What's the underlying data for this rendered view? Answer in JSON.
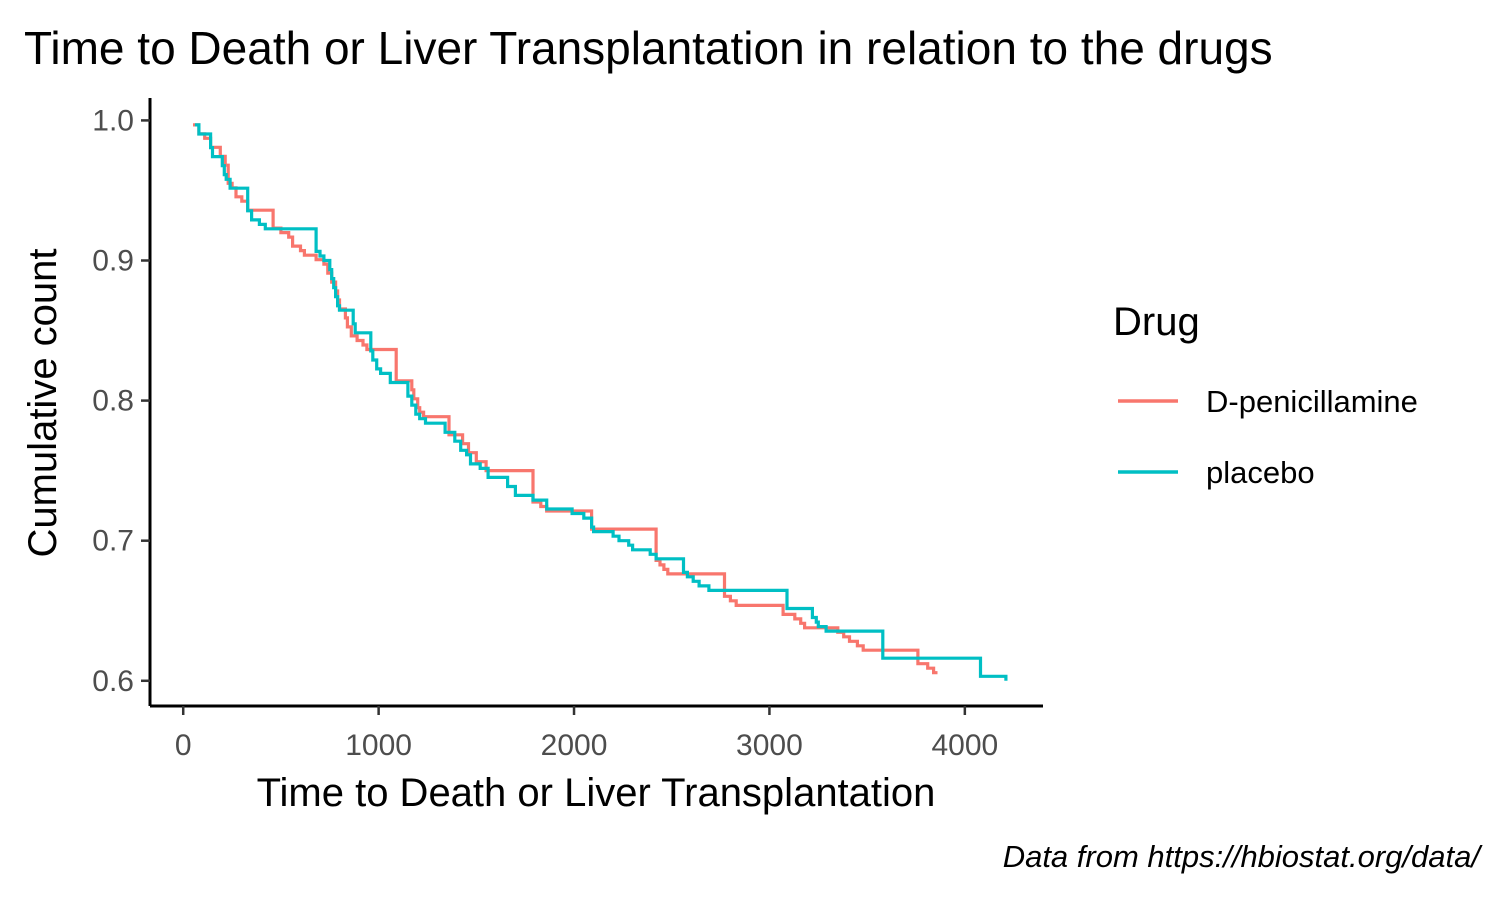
{
  "chart_data": {
    "type": "line",
    "step": true,
    "title": "Time to Death or Liver Transplantation in relation to the drugs",
    "xlabel": "Time to Death or Liver Transplantation",
    "ylabel": "Cumulative count",
    "caption": "Data from https://hbiostat.org/data/",
    "xlim": [
      -170,
      4400
    ],
    "ylim": [
      0.582,
      1.016
    ],
    "xticks": [
      0,
      1000,
      2000,
      3000,
      4000
    ],
    "xtick_labels": [
      "0",
      "1000",
      "2000",
      "3000",
      "4000"
    ],
    "yticks": [
      0.6,
      0.7,
      0.8,
      0.9,
      1.0
    ],
    "ytick_labels": [
      "0.6",
      "0.7",
      "0.8",
      "0.9",
      "1.0"
    ],
    "grid": false,
    "legend": {
      "title": "Drug",
      "position": "right"
    },
    "series": [
      {
        "name": "D-penicillamine",
        "color": "#F8766D",
        "points": [
          [
            50,
            0.9968
          ],
          [
            80,
            0.9904
          ],
          [
            110,
            0.9872
          ],
          [
            140,
            0.9808
          ],
          [
            190,
            0.9744
          ],
          [
            215,
            0.968
          ],
          [
            230,
            0.9551
          ],
          [
            250,
            0.9519
          ],
          [
            270,
            0.9455
          ],
          [
            300,
            0.9423
          ],
          [
            330,
            0.9359
          ],
          [
            460,
            0.9231
          ],
          [
            500,
            0.9199
          ],
          [
            540,
            0.9167
          ],
          [
            560,
            0.9103
          ],
          [
            600,
            0.9071
          ],
          [
            620,
            0.9038
          ],
          [
            680,
            0.9006
          ],
          [
            720,
            0.8974
          ],
          [
            740,
            0.891
          ],
          [
            760,
            0.8846
          ],
          [
            780,
            0.8782
          ],
          [
            790,
            0.8718
          ],
          [
            800,
            0.8654
          ],
          [
            830,
            0.859
          ],
          [
            840,
            0.8526
          ],
          [
            860,
            0.8462
          ],
          [
            890,
            0.8429
          ],
          [
            920,
            0.8397
          ],
          [
            940,
            0.8365
          ],
          [
            1090,
            0.8141
          ],
          [
            1170,
            0.8077
          ],
          [
            1180,
            0.8013
          ],
          [
            1200,
            0.7949
          ],
          [
            1210,
            0.7917
          ],
          [
            1230,
            0.7885
          ],
          [
            1360,
            0.7756
          ],
          [
            1430,
            0.7692
          ],
          [
            1460,
            0.7628
          ],
          [
            1500,
            0.7564
          ],
          [
            1550,
            0.75
          ],
          [
            1790,
            0.7276
          ],
          [
            1830,
            0.7244
          ],
          [
            1860,
            0.7212
          ],
          [
            2090,
            0.7083
          ],
          [
            2420,
            0.6859
          ],
          [
            2440,
            0.6827
          ],
          [
            2460,
            0.6795
          ],
          [
            2480,
            0.6763
          ],
          [
            2770,
            0.6603
          ],
          [
            2800,
            0.6571
          ],
          [
            2830,
            0.6538
          ],
          [
            3070,
            0.6474
          ],
          [
            3130,
            0.6442
          ],
          [
            3160,
            0.641
          ],
          [
            3180,
            0.6378
          ],
          [
            3350,
            0.6346
          ],
          [
            3380,
            0.6314
          ],
          [
            3410,
            0.6282
          ],
          [
            3450,
            0.625
          ],
          [
            3480,
            0.6218
          ],
          [
            3760,
            0.6122
          ],
          [
            3810,
            0.609
          ],
          [
            3840,
            0.6058
          ],
          [
            3860,
            0.6058
          ]
        ]
      },
      {
        "name": "placebo",
        "color": "#00BFC4",
        "points": [
          [
            60,
            0.9968
          ],
          [
            80,
            0.9903
          ],
          [
            140,
            0.9806
          ],
          [
            150,
            0.9742
          ],
          [
            200,
            0.9677
          ],
          [
            210,
            0.9613
          ],
          [
            220,
            0.958
          ],
          [
            240,
            0.9516
          ],
          [
            330,
            0.9355
          ],
          [
            350,
            0.929
          ],
          [
            390,
            0.9258
          ],
          [
            420,
            0.9226
          ],
          [
            680,
            0.9065
          ],
          [
            700,
            0.9032
          ],
          [
            720,
            0.9
          ],
          [
            750,
            0.8935
          ],
          [
            760,
            0.8871
          ],
          [
            770,
            0.8806
          ],
          [
            780,
            0.8742
          ],
          [
            790,
            0.8677
          ],
          [
            800,
            0.8645
          ],
          [
            870,
            0.8548
          ],
          [
            880,
            0.8484
          ],
          [
            960,
            0.8355
          ],
          [
            970,
            0.829
          ],
          [
            990,
            0.8226
          ],
          [
            1010,
            0.8194
          ],
          [
            1060,
            0.8129
          ],
          [
            1150,
            0.8032
          ],
          [
            1170,
            0.7968
          ],
          [
            1190,
            0.7903
          ],
          [
            1210,
            0.7871
          ],
          [
            1240,
            0.7839
          ],
          [
            1340,
            0.7774
          ],
          [
            1390,
            0.771
          ],
          [
            1420,
            0.7645
          ],
          [
            1450,
            0.7613
          ],
          [
            1470,
            0.7548
          ],
          [
            1520,
            0.7516
          ],
          [
            1560,
            0.7452
          ],
          [
            1660,
            0.7387
          ],
          [
            1700,
            0.7323
          ],
          [
            1790,
            0.729
          ],
          [
            1860,
            0.7226
          ],
          [
            1990,
            0.7194
          ],
          [
            2050,
            0.7161
          ],
          [
            2090,
            0.7097
          ],
          [
            2100,
            0.7065
          ],
          [
            2200,
            0.7032
          ],
          [
            2230,
            0.7
          ],
          [
            2280,
            0.6968
          ],
          [
            2300,
            0.6935
          ],
          [
            2390,
            0.6903
          ],
          [
            2420,
            0.6871
          ],
          [
            2560,
            0.6774
          ],
          [
            2580,
            0.6742
          ],
          [
            2610,
            0.671
          ],
          [
            2640,
            0.6677
          ],
          [
            2690,
            0.6645
          ],
          [
            3090,
            0.6516
          ],
          [
            3220,
            0.6452
          ],
          [
            3240,
            0.6419
          ],
          [
            3250,
            0.6387
          ],
          [
            3290,
            0.6355
          ],
          [
            3580,
            0.6161
          ],
          [
            4080,
            0.6032
          ],
          [
            4210,
            0.6
          ]
        ]
      }
    ]
  }
}
